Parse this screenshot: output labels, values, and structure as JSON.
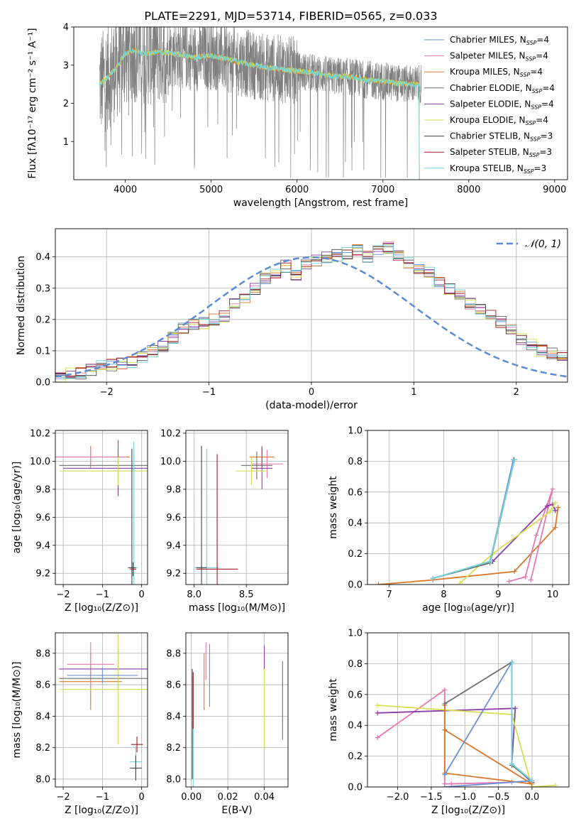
{
  "colors": {
    "blue": "#6a8fd6",
    "pink": "#e67ab5",
    "orange": "#d9782a",
    "grey": "#6e6e6e",
    "purple": "#8a3ea6",
    "yellow": "#d4e052",
    "black": "#444444",
    "red": "#a31f1f",
    "cyan": "#72d3d9",
    "gray_data": "#808080",
    "dashed": "#5b8bd0"
  },
  "chart_data": [
    {
      "type": "line",
      "title": "PLATE=2291, MJD=53714, FIBERID=0565, z=0.033",
      "xlabel": "wavelength [Angstrom, rest frame]",
      "ylabel": "Flux [fλ10⁻¹⁷ erg cm⁻² s⁻¹ A⁻¹]",
      "xlim": [
        3400,
        9150
      ],
      "ylim": [
        0,
        4
      ],
      "xticks": [
        4000,
        5000,
        6000,
        7000,
        8000,
        9000
      ],
      "yticks": [
        1,
        2,
        3,
        4
      ],
      "legend_position": "upper right",
      "legend": [
        {
          "label": "Chabrier MILES, N",
          "sub": "SSP",
          "tail": "=4",
          "color": "blue"
        },
        {
          "label": "Salpeter MILES, N",
          "sub": "SSP",
          "tail": "=4",
          "color": "pink"
        },
        {
          "label": "Kroupa MILES, N",
          "sub": "SSP",
          "tail": "=4",
          "color": "orange"
        },
        {
          "label": "Chabrier ELODIE, N",
          "sub": "SSP",
          "tail": "=4",
          "color": "grey"
        },
        {
          "label": "Salpeter ELODIE, N",
          "sub": "SSP",
          "tail": "=4",
          "color": "purple"
        },
        {
          "label": "Kroupa ELODIE, N",
          "sub": "SSP",
          "tail": "=4",
          "color": "yellow"
        },
        {
          "label": "Chabrier STELIB, N",
          "sub": "SSP",
          "tail": "=3",
          "color": "black"
        },
        {
          "label": "Salpeter STELIB, N",
          "sub": "SSP",
          "tail": "=3",
          "color": "red"
        },
        {
          "label": "Kroupa STELIB, N",
          "sub": "SSP",
          "tail": "=3",
          "color": "cyan"
        }
      ],
      "model_trend": [
        [
          3700,
          2.5
        ],
        [
          3800,
          2.7
        ],
        [
          3900,
          2.95
        ],
        [
          4000,
          3.3
        ],
        [
          4100,
          3.4
        ],
        [
          4200,
          3.3
        ],
        [
          4400,
          3.35
        ],
        [
          4600,
          3.3
        ],
        [
          4800,
          3.2
        ],
        [
          5000,
          3.25
        ],
        [
          5200,
          3.15
        ],
        [
          5400,
          3.05
        ],
        [
          5600,
          2.95
        ],
        [
          5800,
          2.9
        ],
        [
          6000,
          2.85
        ],
        [
          6200,
          2.8
        ],
        [
          6400,
          2.72
        ],
        [
          6600,
          2.7
        ],
        [
          6800,
          2.62
        ],
        [
          7000,
          2.58
        ],
        [
          7200,
          2.52
        ],
        [
          7400,
          2.5
        ]
      ],
      "data_extent": [
        3700,
        9000
      ]
    },
    {
      "type": "histogram",
      "xlabel": "(data-model)/error",
      "ylabel": "Normed distribution",
      "xlim": [
        -2.5,
        2.5
      ],
      "ylim": [
        0,
        0.49
      ],
      "xticks": [
        -2,
        -1,
        0,
        1,
        2
      ],
      "yticks": [
        0.0,
        0.1,
        0.2,
        0.3,
        0.4
      ],
      "grid": true,
      "legend_position": "upper right",
      "legend": [
        {
          "label": "𝒩(0, 1)",
          "color": "dashed",
          "style": "dashed"
        }
      ],
      "bin_width": 0.1,
      "bin_start": -2.5,
      "base_values": [
        0.02,
        0.025,
        0.03,
        0.04,
        0.05,
        0.055,
        0.06,
        0.065,
        0.08,
        0.1,
        0.115,
        0.14,
        0.17,
        0.185,
        0.19,
        0.2,
        0.21,
        0.25,
        0.27,
        0.3,
        0.33,
        0.35,
        0.37,
        0.34,
        0.38,
        0.39,
        0.4,
        0.405,
        0.41,
        0.42,
        0.4,
        0.42,
        0.43,
        0.4,
        0.38,
        0.36,
        0.35,
        0.32,
        0.3,
        0.28,
        0.25,
        0.23,
        0.21,
        0.19,
        0.17,
        0.14,
        0.12,
        0.1,
        0.09,
        0.075,
        0.065,
        0.06,
        0.055,
        0.05,
        0.045,
        0.04,
        0.035,
        0.03,
        0.028,
        0.025
      ]
    },
    {
      "type": "errorbar",
      "xlabel": "Z [log₁₀(Z/Z⊙)]",
      "ylabel": "age  [log₁₀(age/yr)]",
      "xlim": [
        -2.2,
        0.15
      ],
      "ylim": [
        9.12,
        10.22
      ],
      "xticks": [
        -2,
        -1,
        0
      ],
      "yticks": [
        9.2,
        9.4,
        9.6,
        9.8,
        10.0,
        10.2
      ],
      "points": [
        {
          "x": -1.3,
          "y": 10.03,
          "xerr": 1.0,
          "yerr": 0.08,
          "color": "orange"
        },
        {
          "x": -1.3,
          "y": 10.03,
          "xerr": 0.9,
          "yerr": 0.06,
          "color": "pink"
        },
        {
          "x": -0.6,
          "y": 9.95,
          "xerr": 1.4,
          "yerr": 0.2,
          "color": "purple"
        },
        {
          "x": -0.6,
          "y": 9.97,
          "xerr": 1.5,
          "yerr": 0.15,
          "color": "grey"
        },
        {
          "x": -0.6,
          "y": 9.93,
          "xerr": 1.5,
          "yerr": 0.1,
          "color": "yellow"
        },
        {
          "x": -0.2,
          "y": 9.24,
          "xerr": 0.1,
          "yerr": 0.9,
          "color": "cyan"
        },
        {
          "x": -0.25,
          "y": 9.24,
          "xerr": 0.1,
          "yerr": 0.85,
          "color": "black"
        },
        {
          "x": -0.22,
          "y": 9.23,
          "xerr": 0.08,
          "yerr": 0.05,
          "color": "red"
        }
      ]
    },
    {
      "type": "errorbar",
      "xlabel": "mass [log₁₀(M/M⊙)]",
      "ylabel": "",
      "xlim": [
        7.92,
        8.9
      ],
      "ylim": [
        9.12,
        10.22
      ],
      "xticks": [
        8.0,
        8.5
      ],
      "yticks": [
        9.2,
        9.4,
        9.6,
        9.8,
        10.0,
        10.2
      ],
      "points": [
        {
          "x": 8.65,
          "y": 10.03,
          "xerr": 0.12,
          "yerr": 0.08,
          "color": "orange"
        },
        {
          "x": 8.7,
          "y": 9.98,
          "xerr": 0.15,
          "yerr": 0.1,
          "color": "pink"
        },
        {
          "x": 8.65,
          "y": 9.95,
          "xerr": 0.1,
          "yerr": 0.15,
          "color": "purple"
        },
        {
          "x": 8.6,
          "y": 9.97,
          "xerr": 0.15,
          "yerr": 0.1,
          "color": "grey"
        },
        {
          "x": 8.55,
          "y": 9.93,
          "xerr": 0.15,
          "yerr": 0.1,
          "color": "yellow"
        },
        {
          "x": 8.12,
          "y": 9.24,
          "xerr": 0.12,
          "yerr": 0.85,
          "color": "cyan"
        },
        {
          "x": 8.07,
          "y": 9.24,
          "xerr": 0.05,
          "yerr": 0.87,
          "color": "black"
        },
        {
          "x": 8.22,
          "y": 9.23,
          "xerr": 0.2,
          "yerr": 0.82,
          "color": "red"
        }
      ]
    },
    {
      "type": "line",
      "xlabel": "age  [log₁₀(age/yr)]",
      "ylabel": "mass weight",
      "xlim": [
        6.6,
        10.3
      ],
      "ylim": [
        0,
        1
      ],
      "xticks": [
        7,
        8,
        9,
        10
      ],
      "yticks": [
        0.0,
        0.2,
        0.4,
        0.6,
        0.8,
        1.0
      ],
      "grid": true,
      "series": [
        {
          "color": "orange",
          "x": [
            6.8,
            7.8,
            9.3,
            10.05,
            10.1
          ],
          "y": [
            0.0,
            0.03,
            0.085,
            0.37,
            0.5
          ]
        },
        {
          "color": "pink",
          "x": [
            9.2,
            9.5,
            9.7,
            10.0,
            9.6
          ],
          "y": [
            0.02,
            0.05,
            0.32,
            0.62,
            0.03
          ]
        },
        {
          "color": "purple",
          "x": [
            8.9,
            9.9,
            10.0,
            10.05
          ],
          "y": [
            0.15,
            0.51,
            0.52,
            0.48
          ]
        },
        {
          "color": "yellow",
          "x": [
            8.3,
            8.9,
            9.95,
            10.05
          ],
          "y": [
            0.01,
            0.2,
            0.47,
            0.53
          ]
        },
        {
          "color": "grey",
          "x": [
            7.8,
            8.85,
            9.3,
            9.3
          ],
          "y": [
            0.04,
            0.14,
            0.81,
            0.81
          ]
        },
        {
          "color": "blue",
          "x": [
            7.8,
            8.85,
            9.28
          ],
          "y": [
            0.04,
            0.15,
            0.81
          ]
        },
        {
          "color": "cyan",
          "x": [
            7.8,
            8.85,
            9.3
          ],
          "y": [
            0.04,
            0.15,
            0.81
          ]
        }
      ]
    },
    {
      "type": "errorbar",
      "xlabel": "Z [log₁₀(Z/Z⊙)]",
      "ylabel": "mass [log₁₀(M/M⊙)]",
      "xlim": [
        -2.2,
        0.15
      ],
      "ylim": [
        7.95,
        8.93
      ],
      "xticks": [
        -2,
        -1,
        0
      ],
      "yticks": [
        8.0,
        8.2,
        8.4,
        8.6,
        8.8
      ],
      "points": [
        {
          "x": -1.3,
          "y": 8.62,
          "xerr": 0.8,
          "yerr": 0.18,
          "color": "orange"
        },
        {
          "x": -1.3,
          "y": 8.73,
          "xerr": 0.6,
          "yerr": 0.14,
          "color": "pink"
        },
        {
          "x": -0.6,
          "y": 8.7,
          "xerr": 1.5,
          "yerr": 0.13,
          "color": "purple"
        },
        {
          "x": -0.6,
          "y": 8.64,
          "xerr": 1.5,
          "yerr": 0.2,
          "color": "grey"
        },
        {
          "x": -0.6,
          "y": 8.57,
          "xerr": 1.5,
          "yerr": 0.35,
          "color": "yellow"
        },
        {
          "x": -1.0,
          "y": 8.66,
          "xerr": 0.9,
          "yerr": 0.05,
          "color": "blue"
        },
        {
          "x": -0.15,
          "y": 8.11,
          "xerr": 0.15,
          "yerr": 0.1,
          "color": "cyan"
        },
        {
          "x": -0.15,
          "y": 8.07,
          "xerr": 0.15,
          "yerr": 0.08,
          "color": "black"
        },
        {
          "x": -0.12,
          "y": 8.22,
          "xerr": 0.15,
          "yerr": 0.05,
          "color": "red"
        }
      ]
    },
    {
      "type": "errorbar",
      "xlabel": "E(B-V)",
      "ylabel": "",
      "xlim": [
        -0.003,
        0.053
      ],
      "ylim": [
        7.95,
        8.93
      ],
      "xticks": [
        0.0,
        0.02,
        0.04
      ],
      "yticks": [
        8.0,
        8.2,
        8.4,
        8.6,
        8.8
      ],
      "points": [
        {
          "x": 0.007,
          "y": 8.62,
          "xerr": 0,
          "yerr": 0.18,
          "color": "orange"
        },
        {
          "x": 0.008,
          "y": 8.75,
          "xerr": 0,
          "yerr": 0.12,
          "color": "pink"
        },
        {
          "x": 0.04,
          "y": 8.75,
          "xerr": 0,
          "yerr": 0.1,
          "color": "purple"
        },
        {
          "x": 0.05,
          "y": 8.5,
          "xerr": 0,
          "yerr": 0.25,
          "color": "grey"
        },
        {
          "x": 0.04,
          "y": 8.45,
          "xerr": 0,
          "yerr": 0.25,
          "color": "yellow"
        },
        {
          "x": 0.01,
          "y": 8.66,
          "xerr": 0,
          "yerr": 0.2,
          "color": "blue"
        },
        {
          "x": 0.001,
          "y": 8.3,
          "xerr": 0,
          "yerr": 0.35,
          "color": "cyan"
        },
        {
          "x": 0.0005,
          "y": 8.35,
          "xerr": 0,
          "yerr": 0.35,
          "color": "black"
        },
        {
          "x": 0.001,
          "y": 8.5,
          "xerr": 0,
          "yerr": 0.18,
          "color": "red"
        }
      ]
    },
    {
      "type": "line",
      "xlabel": "Z [log₁₀(Z/Z⊙)]",
      "ylabel": "mass weight",
      "xlim": [
        -2.45,
        0.55
      ],
      "ylim": [
        0,
        1
      ],
      "xticks": [
        -2.0,
        -1.5,
        -1.0,
        -0.5,
        0.0
      ],
      "yticks": [
        0.0,
        0.2,
        0.4,
        0.6,
        0.8,
        1.0
      ],
      "grid": true,
      "series": [
        {
          "color": "pink",
          "x": [
            -2.3,
            -1.3,
            -1.3,
            -0.3,
            -1.2
          ],
          "y": [
            0.32,
            0.63,
            0.02,
            0.03,
            0.02
          ]
        },
        {
          "color": "purple",
          "x": [
            -2.3,
            -0.25,
            -0.3,
            0.0
          ],
          "y": [
            0.48,
            0.51,
            0.15,
            0.03
          ]
        },
        {
          "color": "yellow",
          "x": [
            -2.3,
            -0.3,
            0.0,
            0.35
          ],
          "y": [
            0.53,
            0.47,
            0.0,
            0.01
          ]
        },
        {
          "color": "orange",
          "x": [
            -1.3,
            -1.3,
            -1.3,
            0.0,
            -1.3
          ],
          "y": [
            0.53,
            0.37,
            0.09,
            0.02,
            0.37
          ]
        },
        {
          "color": "grey",
          "x": [
            -1.3,
            -0.3,
            -0.3,
            0.0
          ],
          "y": [
            0.54,
            0.81,
            0.14,
            0.04
          ]
        },
        {
          "color": "blue",
          "x": [
            -1.3,
            -0.3,
            -0.3,
            0.0,
            -1.3
          ],
          "y": [
            0.08,
            0.81,
            0.15,
            0.04,
            0.0
          ]
        },
        {
          "color": "cyan",
          "x": [
            -0.3,
            -0.3,
            0.0
          ],
          "y": [
            0.81,
            0.15,
            0.04
          ]
        }
      ]
    }
  ]
}
